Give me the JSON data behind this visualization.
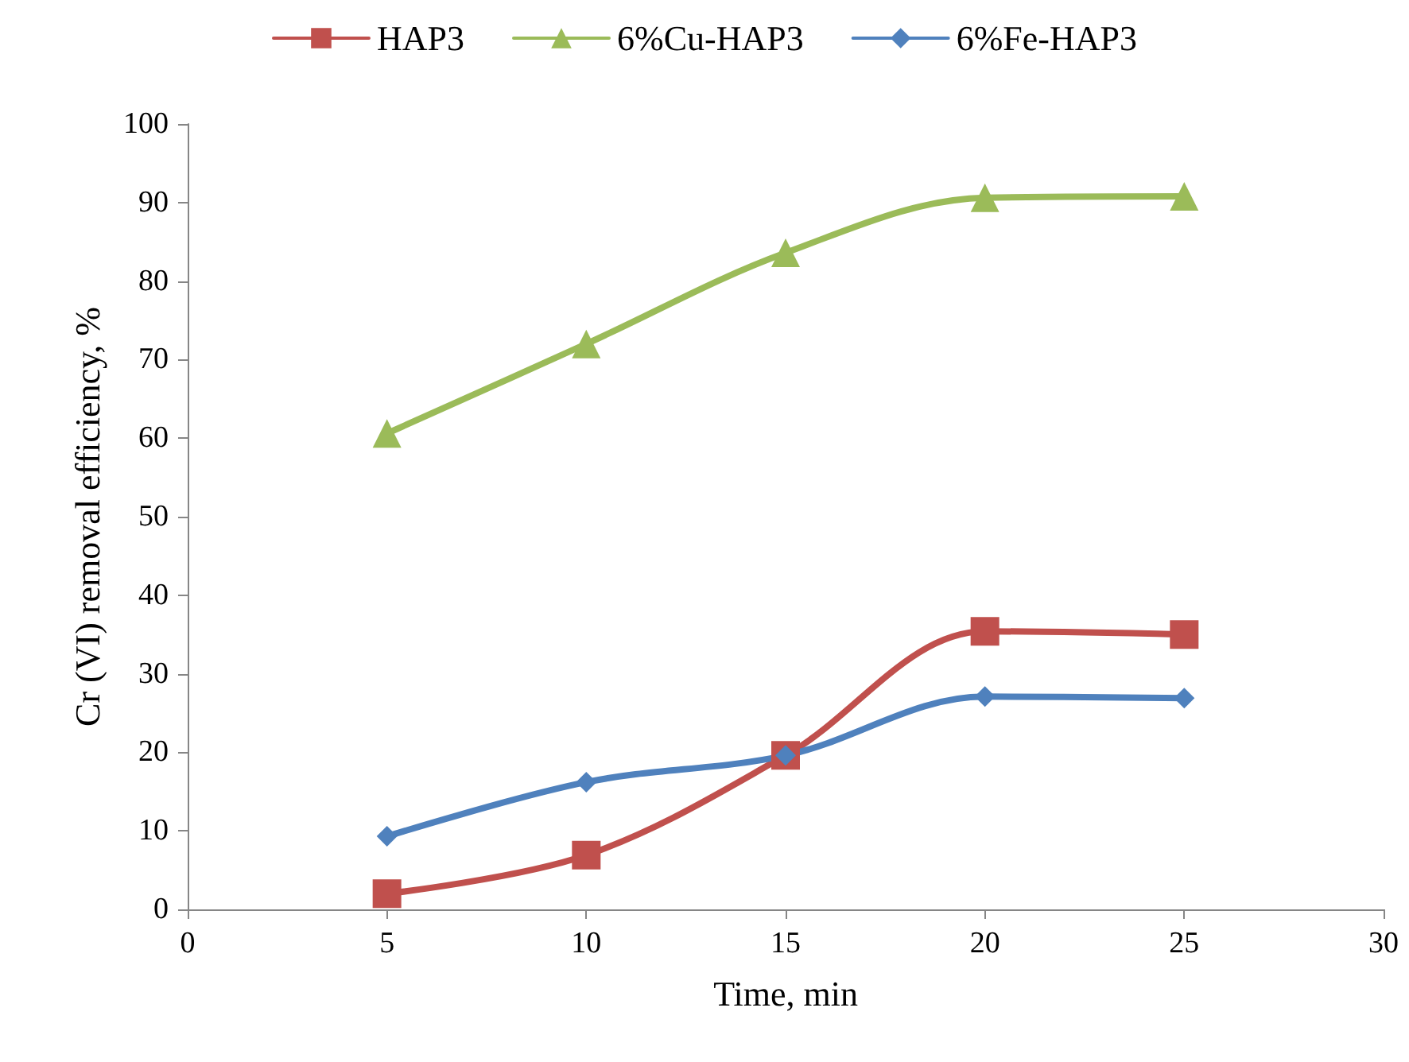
{
  "chart_data": {
    "type": "line",
    "xlabel": "Time, min",
    "ylabel": "Cr (VI) removal efficiency, %",
    "x": [
      5,
      10,
      15,
      20,
      25
    ],
    "series": [
      {
        "name": "HAP3",
        "color": "#c0504d",
        "marker": "square",
        "values": [
          2,
          6.9,
          19.6,
          35.4,
          35
        ]
      },
      {
        "name": "6%Cu-HAP3",
        "color": "#9bbb59",
        "marker": "triangle",
        "values": [
          60.6,
          72,
          83.6,
          90.6,
          90.8
        ]
      },
      {
        "name": "6%Fe-HAP3",
        "color": "#4f81bd",
        "marker": "diamond",
        "values": [
          9.3,
          16.2,
          19.6,
          27.1,
          26.9
        ]
      }
    ],
    "xlim": [
      0,
      30
    ],
    "xticks": [
      0,
      5,
      10,
      15,
      20,
      25,
      30
    ],
    "ylim": [
      0,
      100
    ],
    "yticks": [
      0,
      10,
      20,
      30,
      40,
      50,
      60,
      70,
      80,
      90,
      100
    ],
    "grid": false,
    "legend": "top",
    "line_style": "solid"
  }
}
